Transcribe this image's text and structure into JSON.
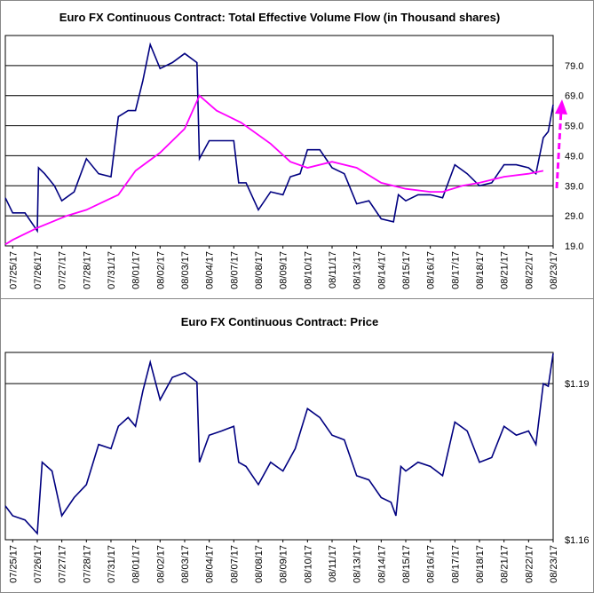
{
  "chart_data": [
    {
      "type": "line",
      "title": "Euro FX Continuous Contract: Total Effective Volume Flow (in Thousand shares)",
      "xlim": [
        -0.3,
        22
      ],
      "xticks": [
        {
          "value": 0,
          "label": "07/25/17"
        },
        {
          "value": 1,
          "label": "07/26/17"
        },
        {
          "value": 2,
          "label": "07/27/17"
        },
        {
          "value": 3,
          "label": "07/28/17"
        },
        {
          "value": 4,
          "label": "07/31/17"
        },
        {
          "value": 5,
          "label": "08/01/17"
        },
        {
          "value": 6,
          "label": "08/02/17"
        },
        {
          "value": 7,
          "label": "08/03/17"
        },
        {
          "value": 8,
          "label": "08/04/17"
        },
        {
          "value": 9,
          "label": "08/07/17"
        },
        {
          "value": 10,
          "label": "08/08/17"
        },
        {
          "value": 11,
          "label": "08/09/17"
        },
        {
          "value": 12,
          "label": "08/10/17"
        },
        {
          "value": 13,
          "label": "08/11/17"
        },
        {
          "value": 14,
          "label": "08/13/17"
        },
        {
          "value": 15,
          "label": "08/14/17"
        },
        {
          "value": 16,
          "label": "08/15/17"
        },
        {
          "value": 17,
          "label": "08/16/17"
        },
        {
          "value": 18,
          "label": "08/17/17"
        },
        {
          "value": 19,
          "label": "08/18/17"
        },
        {
          "value": 20,
          "label": "08/21/17"
        },
        {
          "value": 21,
          "label": "08/22/17"
        },
        {
          "value": 22,
          "label": "08/23/17"
        }
      ],
      "ylim": [
        19,
        89
      ],
      "yticks": [
        {
          "value": 19,
          "label": "19.0"
        },
        {
          "value": 29,
          "label": "29.0"
        },
        {
          "value": 39,
          "label": "39.0"
        },
        {
          "value": 49,
          "label": "49.0"
        },
        {
          "value": 59,
          "label": "59.0"
        },
        {
          "value": 69,
          "label": "69.0"
        },
        {
          "value": 79,
          "label": "79.0"
        }
      ],
      "grid": true,
      "series": [
        {
          "color": "#000080",
          "x": [
            -0.3,
            0,
            0.5,
            1,
            1.05,
            1.3,
            1.7,
            2,
            2.5,
            3,
            3.5,
            4,
            4.3,
            4.7,
            5,
            5.3,
            5.6,
            6,
            6.5,
            7,
            7.5,
            7.6,
            8,
            8.5,
            9,
            9.2,
            9.5,
            10,
            10.5,
            11,
            11.3,
            11.7,
            12,
            12.5,
            13,
            13.5,
            14,
            14.5,
            15,
            15.5,
            15.7,
            16,
            16.5,
            17,
            17.5,
            18,
            18.5,
            19,
            19.5,
            20,
            20.5,
            21,
            21.3,
            21.6,
            21.8,
            22
          ],
          "values": [
            35,
            30,
            30,
            24,
            45,
            43,
            39,
            34,
            37,
            48,
            43,
            42,
            62,
            64,
            64,
            74,
            86,
            78,
            80,
            83,
            80,
            48,
            54,
            54,
            54,
            40,
            40,
            31,
            37,
            36,
            42,
            43,
            51,
            51,
            45,
            43,
            33,
            34,
            28,
            27,
            36,
            34,
            36,
            36,
            35,
            46,
            43,
            39,
            40,
            46,
            46,
            45,
            43,
            55,
            57,
            66
          ]
        },
        {
          "color": "#ff00ff",
          "x": [
            -0.3,
            0,
            1,
            2.2,
            3,
            4.3,
            5,
            6,
            7,
            7.6,
            8.3,
            9.3,
            10.5,
            11.3,
            12,
            13,
            14,
            15,
            16,
            17,
            17.5,
            18.3,
            19,
            20,
            21,
            21.6
          ],
          "values": [
            19.5,
            21,
            25,
            29,
            31,
            36,
            44,
            50,
            58,
            69,
            64,
            60,
            53,
            47,
            45,
            47,
            45,
            40,
            38,
            37,
            37,
            39,
            40,
            42,
            43,
            44
          ]
        }
      ]
    },
    {
      "type": "line",
      "title": "Euro FX Continuous Contract: Price",
      "xlim": [
        -0.3,
        22
      ],
      "xticks": [
        {
          "value": 0,
          "label": "07/25/17"
        },
        {
          "value": 1,
          "label": "07/26/17"
        },
        {
          "value": 2,
          "label": "07/27/17"
        },
        {
          "value": 3,
          "label": "07/28/17"
        },
        {
          "value": 4,
          "label": "07/31/17"
        },
        {
          "value": 5,
          "label": "08/01/17"
        },
        {
          "value": 6,
          "label": "08/02/17"
        },
        {
          "value": 7,
          "label": "08/03/17"
        },
        {
          "value": 8,
          "label": "08/04/17"
        },
        {
          "value": 9,
          "label": "08/07/17"
        },
        {
          "value": 10,
          "label": "08/08/17"
        },
        {
          "value": 11,
          "label": "08/09/17"
        },
        {
          "value": 12,
          "label": "08/10/17"
        },
        {
          "value": 13,
          "label": "08/11/17"
        },
        {
          "value": 14,
          "label": "08/13/17"
        },
        {
          "value": 15,
          "label": "08/14/17"
        },
        {
          "value": 16,
          "label": "08/15/17"
        },
        {
          "value": 17,
          "label": "08/16/17"
        },
        {
          "value": 18,
          "label": "08/17/17"
        },
        {
          "value": 19,
          "label": "08/18/17"
        },
        {
          "value": 20,
          "label": "08/21/17"
        },
        {
          "value": 21,
          "label": "08/22/17"
        },
        {
          "value": 22,
          "label": "08/23/17"
        }
      ],
      "ylim": [
        1.16,
        1.196
      ],
      "yticks": [
        {
          "value": 1.16,
          "label": "$1.16"
        },
        {
          "value": 1.19,
          "label": "$1.19"
        }
      ],
      "grid": true,
      "series": [
        {
          "color": "#000080",
          "x": [
            -0.3,
            0,
            0.5,
            1,
            1.2,
            1.6,
            2,
            2.5,
            3,
            3.5,
            4,
            4.3,
            4.7,
            5,
            5.3,
            5.6,
            6,
            6.5,
            7,
            7.5,
            7.6,
            8,
            8.5,
            9,
            9.2,
            9.5,
            10,
            10.5,
            11,
            11.5,
            12,
            12.5,
            13,
            13.5,
            14,
            14.5,
            15,
            15.4,
            15.6,
            15.8,
            16,
            16.5,
            17,
            17.5,
            18,
            18.5,
            19,
            19.5,
            20,
            20.5,
            21,
            21.3,
            21.6,
            21.8,
            22
          ],
          "values": [
            1.1665,
            1.1646,
            1.1638,
            1.1612,
            1.1749,
            1.1732,
            1.1646,
            1.1681,
            1.1706,
            1.1783,
            1.1775,
            1.1818,
            1.1835,
            1.1818,
            1.1886,
            1.1941,
            1.1869,
            1.1912,
            1.1921,
            1.1903,
            1.1749,
            1.1801,
            1.1809,
            1.1818,
            1.1749,
            1.1741,
            1.1706,
            1.1749,
            1.1732,
            1.1775,
            1.1852,
            1.1835,
            1.1801,
            1.1792,
            1.1723,
            1.1715,
            1.1681,
            1.1672,
            1.1646,
            1.1741,
            1.1732,
            1.1749,
            1.1741,
            1.1723,
            1.1826,
            1.1809,
            1.1749,
            1.1758,
            1.1818,
            1.1801,
            1.1809,
            1.1783,
            1.19,
            1.1895,
            1.1958
          ]
        }
      ]
    }
  ]
}
